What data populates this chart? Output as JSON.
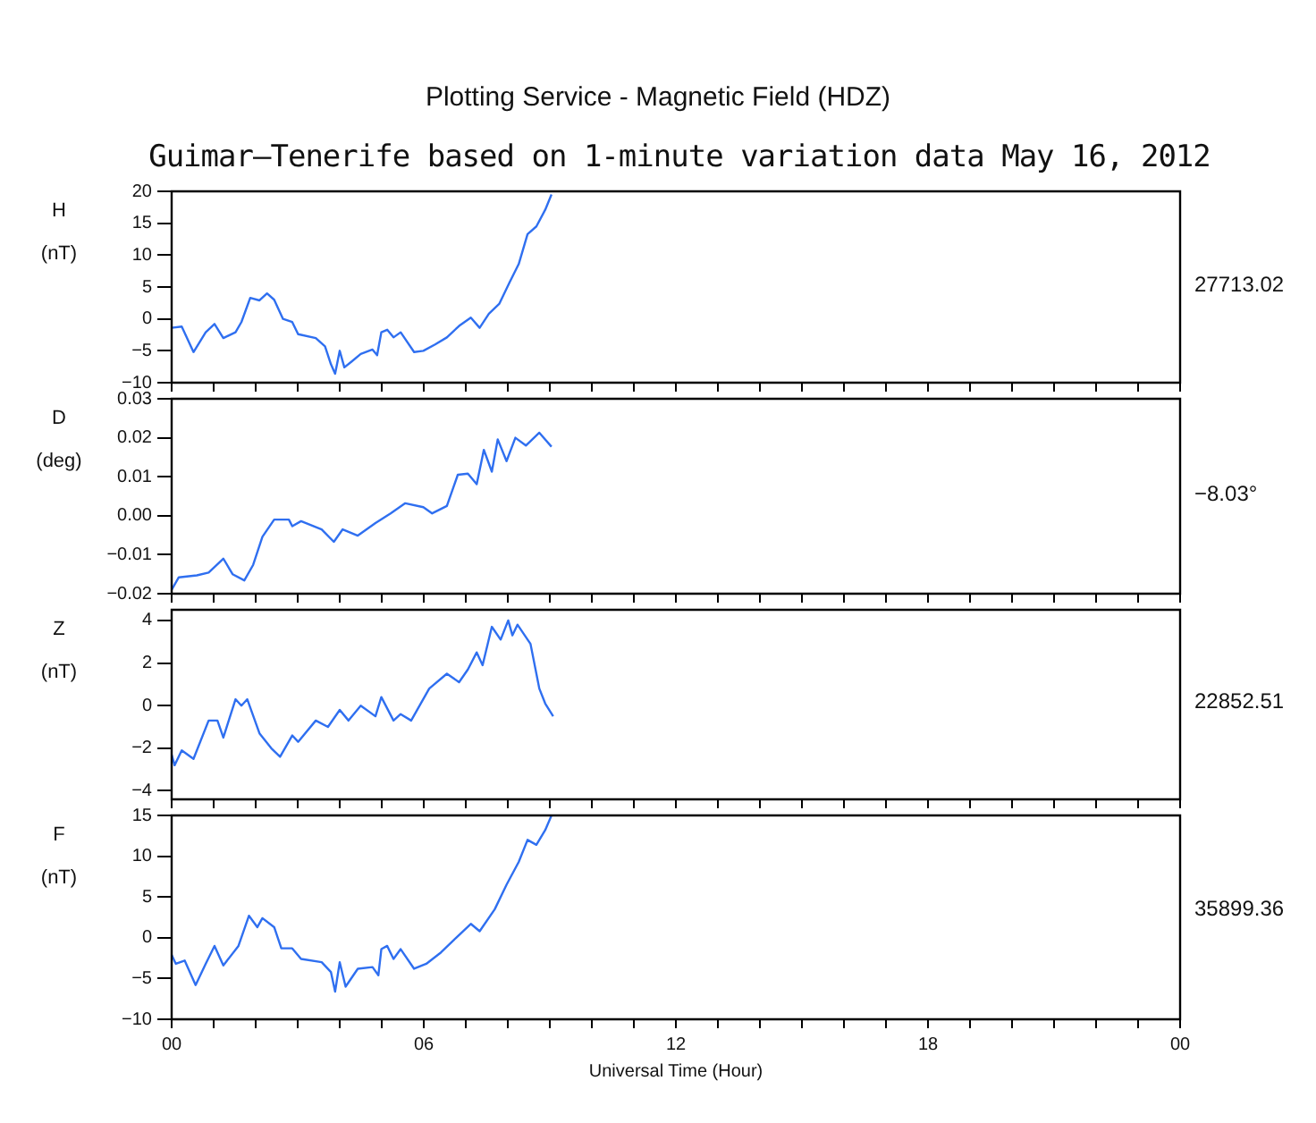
{
  "chart_data": [
    {
      "type": "line",
      "title": "Plotting Service - Magnetic Field (HDZ)",
      "subtitle": "Guimar–Tenerife based on 1-minute variation data May 16, 2012",
      "ylabel": "H (nT)",
      "annotations": [
        "27713.02"
      ],
      "tick_labels": "y",
      "grid": false,
      "legend": false,
      "marker": "none",
      "line_style": "solid",
      "xlim": [
        0,
        24
      ],
      "xticks": [
        {
          "value": 0,
          "label": null
        },
        {
          "value": 1,
          "label": null
        },
        {
          "value": 2,
          "label": null
        },
        {
          "value": 3,
          "label": null
        },
        {
          "value": 4,
          "label": null
        },
        {
          "value": 5,
          "label": null
        },
        {
          "value": 6,
          "label": null
        },
        {
          "value": 7,
          "label": null
        },
        {
          "value": 8,
          "label": null
        },
        {
          "value": 9,
          "label": null
        },
        {
          "value": 10,
          "label": null
        },
        {
          "value": 11,
          "label": null
        },
        {
          "value": 12,
          "label": null
        },
        {
          "value": 13,
          "label": null
        },
        {
          "value": 14,
          "label": null
        },
        {
          "value": 15,
          "label": null
        },
        {
          "value": 16,
          "label": null
        },
        {
          "value": 17,
          "label": null
        },
        {
          "value": 18,
          "label": null
        },
        {
          "value": 19,
          "label": null
        },
        {
          "value": 20,
          "label": null
        },
        {
          "value": 21,
          "label": null
        },
        {
          "value": 22,
          "label": null
        },
        {
          "value": 23,
          "label": null
        },
        {
          "value": 24,
          "label": null
        }
      ],
      "ylim": [
        -10,
        20
      ],
      "yticks": [
        {
          "value": -10,
          "label": "−10"
        },
        {
          "value": -5,
          "label": "−5"
        },
        0,
        5,
        10,
        15,
        20
      ],
      "x": [
        0,
        0.24,
        0.52,
        0.81,
        1.02,
        1.23,
        1.52,
        1.66,
        1.87,
        2.09,
        2.27,
        2.44,
        2.65,
        2.87,
        3.01,
        3.43,
        3.65,
        3.79,
        3.89,
        4.0,
        4.11,
        4.28,
        4.5,
        4.78,
        4.89,
        4.99,
        5.13,
        5.28,
        5.45,
        5.77,
        5.99,
        6.27,
        6.55,
        6.84,
        7.12,
        7.33,
        7.55,
        7.8,
        8.04,
        8.26,
        8.47,
        8.68,
        8.89,
        9.04
      ],
      "series": [
        {
          "color": "#2f6ff0",
          "values": [
            -1.4,
            -1.2,
            -5.2,
            -2.1,
            -0.8,
            -3.0,
            -2.1,
            -0.5,
            3.3,
            2.9,
            4.0,
            3.0,
            0,
            -0.5,
            -2.4,
            -3.0,
            -4.3,
            -7.1,
            -8.6,
            -5.0,
            -7.6,
            -6.7,
            -5.5,
            -4.8,
            -5.7,
            -2.1,
            -1.7,
            -2.9,
            -2.1,
            -5.2,
            -5.0,
            -4.0,
            -2.9,
            -1.1,
            0.2,
            -1.4,
            0.8,
            2.4,
            5.7,
            8.6,
            13.3,
            14.5,
            17.1,
            19.5
          ]
        }
      ]
    },
    {
      "type": "line",
      "ylabel": "D (deg)",
      "annotations": [
        "−8.03°"
      ],
      "tick_labels": "y",
      "grid": false,
      "legend": false,
      "marker": "none",
      "line_style": "solid",
      "xlim": [
        0,
        24
      ],
      "xticks": [
        {
          "value": 0,
          "label": null
        },
        {
          "value": 1,
          "label": null
        },
        {
          "value": 2,
          "label": null
        },
        {
          "value": 3,
          "label": null
        },
        {
          "value": 4,
          "label": null
        },
        {
          "value": 5,
          "label": null
        },
        {
          "value": 6,
          "label": null
        },
        {
          "value": 7,
          "label": null
        },
        {
          "value": 8,
          "label": null
        },
        {
          "value": 9,
          "label": null
        },
        {
          "value": 10,
          "label": null
        },
        {
          "value": 11,
          "label": null
        },
        {
          "value": 12,
          "label": null
        },
        {
          "value": 13,
          "label": null
        },
        {
          "value": 14,
          "label": null
        },
        {
          "value": 15,
          "label": null
        },
        {
          "value": 16,
          "label": null
        },
        {
          "value": 17,
          "label": null
        },
        {
          "value": 18,
          "label": null
        },
        {
          "value": 19,
          "label": null
        },
        {
          "value": 20,
          "label": null
        },
        {
          "value": 21,
          "label": null
        },
        {
          "value": 22,
          "label": null
        },
        {
          "value": 23,
          "label": null
        },
        {
          "value": 24,
          "label": null
        }
      ],
      "ylim": [
        -0.02,
        0.03
      ],
      "yticks": [
        {
          "value": -0.02,
          "label": "−0.02"
        },
        {
          "value": -0.01,
          "label": "−0.01"
        },
        {
          "value": 0,
          "label": "0.00"
        },
        {
          "value": 0.01,
          "label": "0.01"
        },
        {
          "value": 0.02,
          "label": "0.02"
        },
        {
          "value": 0.03,
          "label": "0.03"
        }
      ],
      "x": [
        0,
        0.17,
        0.6,
        0.88,
        1.23,
        1.45,
        1.73,
        1.94,
        2.16,
        2.44,
        2.79,
        2.87,
        3.08,
        3.57,
        3.86,
        4.07,
        4.43,
        4.85,
        5.21,
        5.56,
        5.99,
        6.2,
        6.55,
        6.81,
        7.05,
        7.26,
        7.43,
        7.62,
        7.76,
        7.97,
        8.18,
        8.43,
        8.75,
        9.04
      ],
      "series": [
        {
          "color": "#2f6ff0",
          "values": [
            -0.019,
            -0.0158,
            -0.0153,
            -0.0146,
            -0.011,
            -0.015,
            -0.0166,
            -0.0126,
            -0.0054,
            -0.001,
            -0.001,
            -0.0027,
            -0.0014,
            -0.0035,
            -0.0067,
            -0.0035,
            -0.0051,
            -0.0019,
            0.0006,
            0.0032,
            0.0022,
            0.0006,
            0.0025,
            0.0105,
            0.0108,
            0.0081,
            0.0169,
            0.0113,
            0.0196,
            0.014,
            0.02,
            0.018,
            0.0213,
            0.0177
          ]
        }
      ]
    },
    {
      "type": "line",
      "ylabel": "Z (nT)",
      "annotations": [
        "22852.51"
      ],
      "tick_labels": "y",
      "grid": false,
      "legend": false,
      "marker": "none",
      "line_style": "solid",
      "xlim": [
        0,
        24
      ],
      "xticks": [
        {
          "value": 0,
          "label": null
        },
        {
          "value": 1,
          "label": null
        },
        {
          "value": 2,
          "label": null
        },
        {
          "value": 3,
          "label": null
        },
        {
          "value": 4,
          "label": null
        },
        {
          "value": 5,
          "label": null
        },
        {
          "value": 6,
          "label": null
        },
        {
          "value": 7,
          "label": null
        },
        {
          "value": 8,
          "label": null
        },
        {
          "value": 9,
          "label": null
        },
        {
          "value": 10,
          "label": null
        },
        {
          "value": 11,
          "label": null
        },
        {
          "value": 12,
          "label": null
        },
        {
          "value": 13,
          "label": null
        },
        {
          "value": 14,
          "label": null
        },
        {
          "value": 15,
          "label": null
        },
        {
          "value": 16,
          "label": null
        },
        {
          "value": 17,
          "label": null
        },
        {
          "value": 18,
          "label": null
        },
        {
          "value": 19,
          "label": null
        },
        {
          "value": 20,
          "label": null
        },
        {
          "value": 21,
          "label": null
        },
        {
          "value": 22,
          "label": null
        },
        {
          "value": 23,
          "label": null
        },
        {
          "value": 24,
          "label": null
        }
      ],
      "ylim": [
        -4.4,
        4.5
      ],
      "yticks": [
        {
          "value": -4,
          "label": "−4"
        },
        {
          "value": -2,
          "label": "−2"
        },
        0,
        2,
        4
      ],
      "x": [
        0,
        0.07,
        0.24,
        0.52,
        0.88,
        1.09,
        1.23,
        1.52,
        1.66,
        1.8,
        2.09,
        2.37,
        2.58,
        2.87,
        3.01,
        3.43,
        3.72,
        4.0,
        4.21,
        4.5,
        4.85,
        4.99,
        5.28,
        5.45,
        5.7,
        6.13,
        6.55,
        6.84,
        7.05,
        7.26,
        7.4,
        7.62,
        7.83,
        8.01,
        8.11,
        8.23,
        8.54,
        8.75,
        8.89,
        9.08
      ],
      "series": [
        {
          "color": "#2f6ff0",
          "values": [
            -2.3,
            -2.8,
            -2.1,
            -2.5,
            -0.7,
            -0.7,
            -1.5,
            0.3,
            0,
            0.3,
            -1.3,
            -2.0,
            -2.4,
            -1.4,
            -1.7,
            -0.7,
            -1.0,
            -0.2,
            -0.7,
            0,
            -0.5,
            0.4,
            -0.7,
            -0.4,
            -0.7,
            0.8,
            1.5,
            1.1,
            1.7,
            2.5,
            1.9,
            3.7,
            3.1,
            4.0,
            3.3,
            3.8,
            2.9,
            0.8,
            0.1,
            -0.5
          ]
        }
      ]
    },
    {
      "type": "line",
      "ylabel": "F (nT)",
      "xlabel": "Universal Time (Hour)",
      "annotations": [
        "35899.36"
      ],
      "grid": false,
      "legend": false,
      "marker": "none",
      "line_style": "solid",
      "xlim": [
        0,
        24
      ],
      "xticks": [
        {
          "value": 0,
          "label": "00"
        },
        {
          "value": 1,
          "label": null
        },
        {
          "value": 2,
          "label": null
        },
        {
          "value": 3,
          "label": null
        },
        {
          "value": 4,
          "label": null
        },
        {
          "value": 5,
          "label": null
        },
        {
          "value": 6,
          "label": "06"
        },
        {
          "value": 7,
          "label": null
        },
        {
          "value": 8,
          "label": null
        },
        {
          "value": 9,
          "label": null
        },
        {
          "value": 10,
          "label": null
        },
        {
          "value": 11,
          "label": null
        },
        {
          "value": 12,
          "label": "12"
        },
        {
          "value": 13,
          "label": null
        },
        {
          "value": 14,
          "label": null
        },
        {
          "value": 15,
          "label": null
        },
        {
          "value": 16,
          "label": null
        },
        {
          "value": 17,
          "label": null
        },
        {
          "value": 18,
          "label": "18"
        },
        {
          "value": 19,
          "label": null
        },
        {
          "value": 20,
          "label": null
        },
        {
          "value": 21,
          "label": null
        },
        {
          "value": 22,
          "label": null
        },
        {
          "value": 23,
          "label": null
        },
        {
          "value": 24,
          "label": "00"
        }
      ],
      "ylim": [
        -10,
        15
      ],
      "yticks": [
        {
          "value": -10,
          "label": "−10"
        },
        {
          "value": -5,
          "label": "−5"
        },
        0,
        5,
        10,
        15
      ],
      "x": [
        0,
        0.1,
        0.31,
        0.57,
        0.81,
        1.02,
        1.23,
        1.59,
        1.84,
        2.04,
        2.16,
        2.44,
        2.61,
        2.87,
        3.08,
        3.57,
        3.79,
        3.89,
        4.0,
        4.14,
        4.43,
        4.78,
        4.92,
        4.99,
        5.13,
        5.28,
        5.45,
        5.77,
        6.06,
        6.41,
        6.77,
        7.12,
        7.33,
        7.69,
        7.97,
        8.26,
        8.47,
        8.68,
        8.89,
        9.04
      ],
      "series": [
        {
          "color": "#2f6ff0",
          "values": [
            -2.1,
            -3.2,
            -2.8,
            -5.8,
            -3.2,
            -1.0,
            -3.4,
            -1.0,
            2.7,
            1.3,
            2.4,
            1.3,
            -1.3,
            -1.3,
            -2.6,
            -3.0,
            -4.2,
            -6.6,
            -3.0,
            -6.0,
            -3.8,
            -3.6,
            -4.6,
            -1.4,
            -1.0,
            -2.6,
            -1.4,
            -3.8,
            -3.2,
            -1.8,
            0,
            1.7,
            0.8,
            3.5,
            6.5,
            9.3,
            12.0,
            11.4,
            13.2,
            15.0
          ]
        }
      ]
    }
  ]
}
